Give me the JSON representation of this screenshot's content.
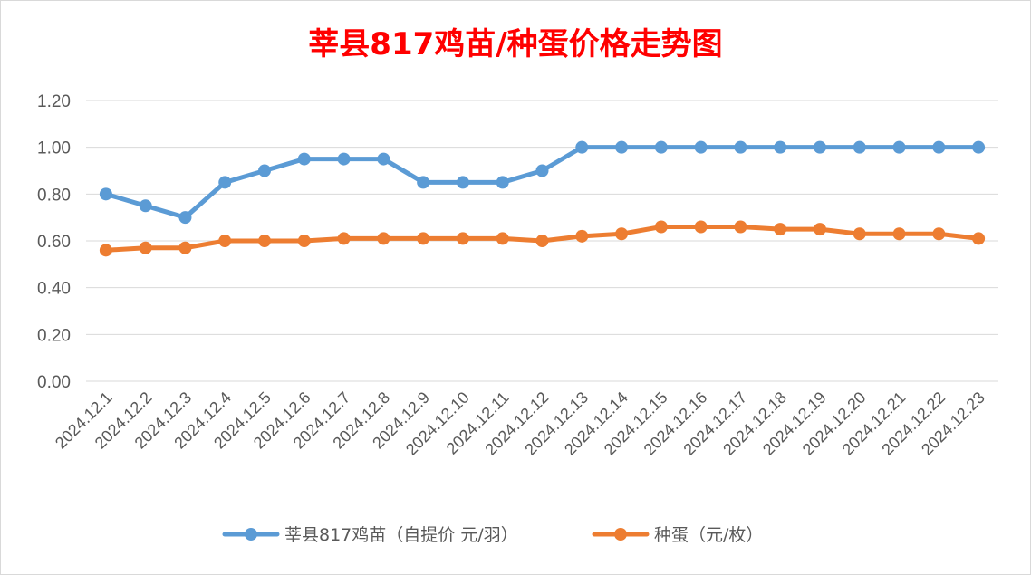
{
  "chart_data": {
    "type": "line",
    "title": "莘县817鸡苗/种蛋价格走势图",
    "xlabel": "",
    "ylabel": "",
    "ylim": [
      0,
      1.2
    ],
    "yticks": [
      "0.00",
      "0.20",
      "0.40",
      "0.60",
      "0.80",
      "1.00",
      "1.20"
    ],
    "grid": true,
    "legend_position": "bottom",
    "categories": [
      "2024.12.1",
      "2024.12.2",
      "2024.12.3",
      "2024.12.4",
      "2024.12.5",
      "2024.12.6",
      "2024.12.7",
      "2024.12.8",
      "2024.12.9",
      "2024.12.10",
      "2024.12.11",
      "2024.12.12",
      "2024.12.13",
      "2024.12.14",
      "2024.12.15",
      "2024.12.16",
      "2024.12.17",
      "2024.12.18",
      "2024.12.19",
      "2024.12.20",
      "2024.12.21",
      "2024.12.22",
      "2024.12.23"
    ],
    "series": [
      {
        "name": "莘县817鸡苗（自提价 元/羽）",
        "color": "#5b9bd5",
        "values": [
          0.8,
          0.75,
          0.7,
          0.85,
          0.9,
          0.95,
          0.95,
          0.95,
          0.85,
          0.85,
          0.85,
          0.9,
          1.0,
          1.0,
          1.0,
          1.0,
          1.0,
          1.0,
          1.0,
          1.0,
          1.0,
          1.0,
          1.0
        ]
      },
      {
        "name": "种蛋（元/枚）",
        "color": "#ed7d31",
        "values": [
          0.56,
          0.57,
          0.57,
          0.6,
          0.6,
          0.6,
          0.61,
          0.61,
          0.61,
          0.61,
          0.61,
          0.6,
          0.62,
          0.63,
          0.66,
          0.66,
          0.66,
          0.65,
          0.65,
          0.63,
          0.63,
          0.63,
          0.61
        ]
      }
    ]
  }
}
